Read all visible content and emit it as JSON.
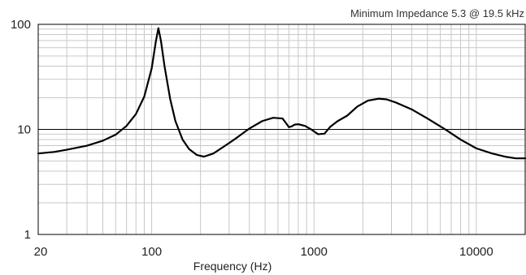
{
  "chart_data": {
    "type": "line",
    "title": "",
    "annotation": "Minimum Impedance 5.3 @ 19.5 kHz",
    "xlabel": "Frequency (Hz)",
    "ylabel": "",
    "x_scale": "log",
    "y_scale": "log",
    "xlim": [
      20,
      20000
    ],
    "ylim": [
      1,
      100
    ],
    "x_ticks": [
      {
        "value": 20,
        "label": "20"
      },
      {
        "value": 100,
        "label": "100"
      },
      {
        "value": 1000,
        "label": "1000"
      },
      {
        "value": 10000,
        "label": "10000"
      }
    ],
    "y_ticks": [
      {
        "value": 1,
        "label": "1"
      },
      {
        "value": 10,
        "label": "10"
      },
      {
        "value": 100,
        "label": "100"
      }
    ],
    "grid": true,
    "legend": "none",
    "line_color": "#000000",
    "grid_color": "#c8c8c8",
    "series": [
      {
        "x": [
          20,
          25,
          30,
          40,
          50,
          60,
          70,
          80,
          90,
          100,
          106,
          110,
          114,
          120,
          130,
          140,
          155,
          170,
          190,
          210,
          240,
          280,
          330,
          400,
          480,
          560,
          640,
          680,
          700,
          730,
          760,
          800,
          880,
          960,
          1060,
          1160,
          1260,
          1400,
          1600,
          1850,
          2150,
          2500,
          2800,
          3200,
          4000,
          5000,
          6500,
          8000,
          10000,
          12500,
          15000,
          17500,
          20000
        ],
        "y": [
          5.9,
          6.1,
          6.4,
          7.0,
          7.8,
          8.9,
          10.8,
          14.0,
          20.5,
          38,
          68,
          92,
          70,
          40,
          19.5,
          12,
          8.0,
          6.5,
          5.7,
          5.5,
          5.9,
          6.9,
          8.2,
          10.2,
          12.0,
          12.9,
          12.7,
          11.2,
          10.5,
          10.7,
          11.1,
          11.2,
          10.8,
          10.0,
          9.0,
          9.1,
          10.6,
          12.0,
          13.5,
          16.5,
          18.8,
          19.6,
          19.3,
          18.0,
          15.5,
          12.7,
          9.9,
          8.0,
          6.6,
          5.9,
          5.5,
          5.3,
          5.3
        ]
      }
    ]
  }
}
